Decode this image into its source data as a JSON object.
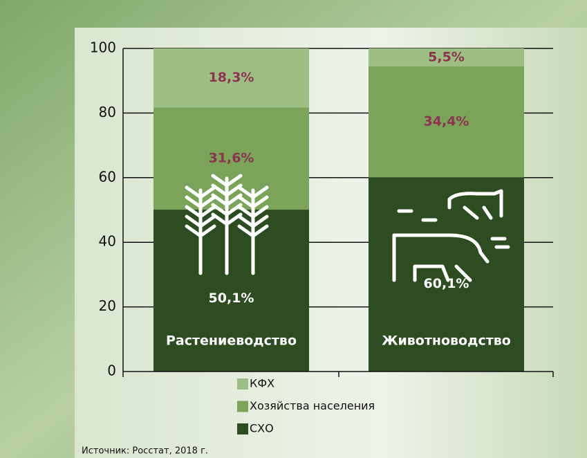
{
  "chart_data": {
    "type": "stacked-bar",
    "categories": [
      "Растениеводство",
      "Животноводство"
    ],
    "series": [
      {
        "name": "СХО",
        "color": "#2d4c21",
        "label_color": "#ffffff",
        "values": [
          50.1,
          60.1
        ],
        "value_labels": [
          "50,1%",
          "60,1%"
        ]
      },
      {
        "name": "Хозяйства населения",
        "color": "#7ba35a",
        "label_color": "#8c3352",
        "values": [
          31.6,
          34.4
        ],
        "value_labels": [
          "31,6%",
          "34,4%"
        ]
      },
      {
        "name": "КФХ",
        "color": "#9dbf83",
        "label_color": "#8c3352",
        "values": [
          18.3,
          5.5
        ],
        "value_labels": [
          "18,3%",
          "5,5%"
        ]
      }
    ],
    "ylim": [
      0,
      100
    ],
    "yticks": [
      0,
      20,
      40,
      60,
      80,
      100
    ],
    "grid": true,
    "source": "Источник: Росстат, 2018 г."
  }
}
